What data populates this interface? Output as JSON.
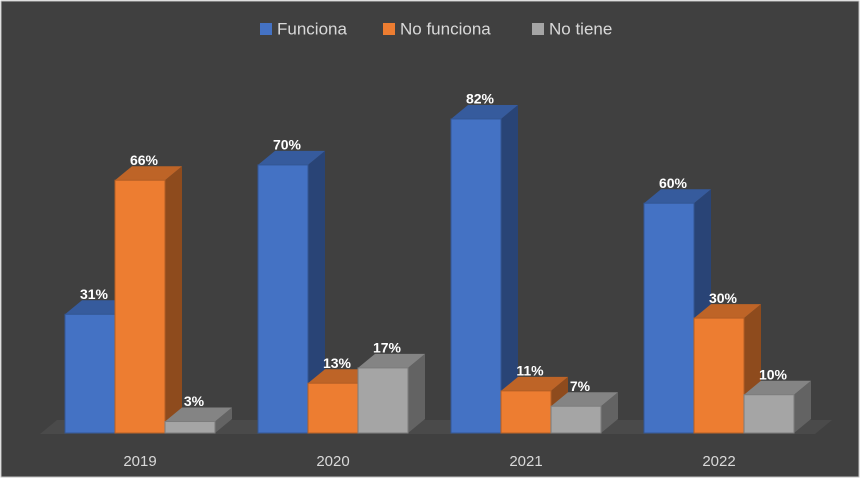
{
  "chart_data": {
    "type": "bar3d",
    "categories": [
      "2019",
      "2020",
      "2021",
      "2022"
    ],
    "series": [
      {
        "name": "Funciona",
        "color": "#4472c4",
        "values": [
          31,
          70,
          82,
          60
        ],
        "value_labels": [
          "31%",
          "70%",
          "82%",
          "60%"
        ]
      },
      {
        "name": "No funciona",
        "color": "#ed7d31",
        "values": [
          66,
          13,
          11,
          30
        ],
        "value_labels": [
          "66%",
          "13%",
          "11%",
          "30%"
        ]
      },
      {
        "name": "No tiene",
        "color": "#a5a5a5",
        "values": [
          3,
          17,
          7,
          10
        ],
        "value_labels": [
          "3%",
          "17%",
          "7%",
          "10%"
        ]
      }
    ],
    "legend": "top"
  }
}
